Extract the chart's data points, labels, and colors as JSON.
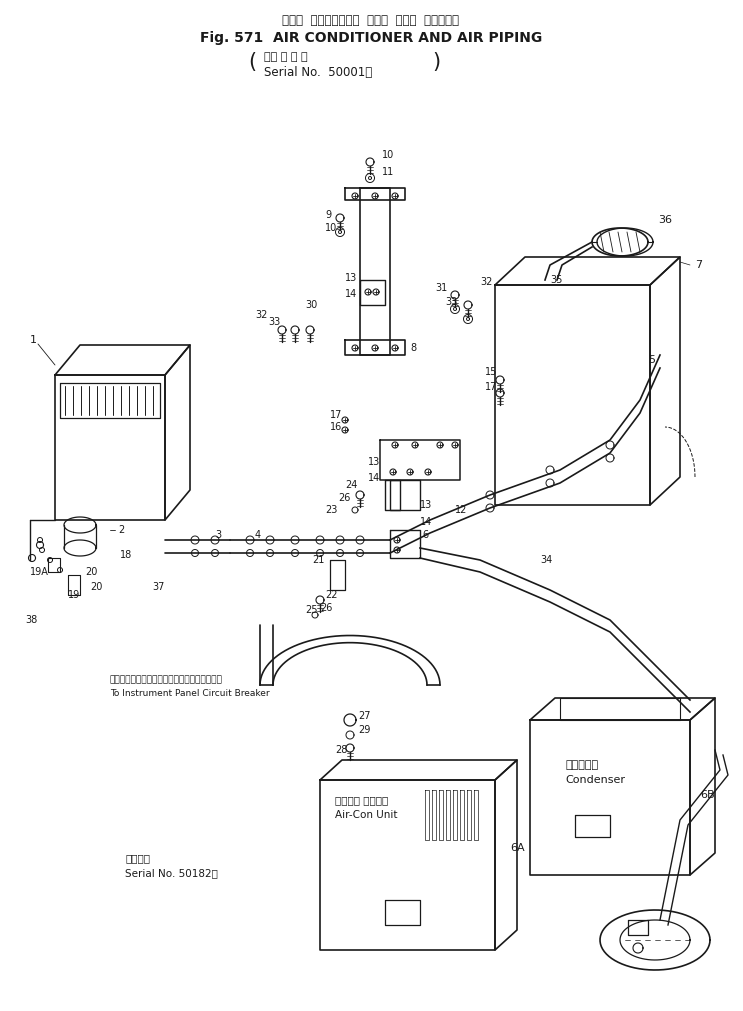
{
  "title_jp": "エアー  コンディショナ  および  エアー  パイピング",
  "title_en": "Fig. 571  AIR CONDITIONER AND AIR PIPING",
  "sub_jp": "（適 用 号 機",
  "sub_en": "Serial No.  50001～",
  "note1_jp": "インスツルメントパネルサーキットブレーカへ",
  "note1_en": "To Instrument Panel Circuit Breaker",
  "condenser_jp": "コンデンサ",
  "condenser_en": "Condenser",
  "aircon_jp": "エアコン ユニット",
  "aircon_en": "Air-Con Unit",
  "serial2_jp": "適用号機",
  "serial2_en": "Serial No. 50182～",
  "bg": "#ffffff",
  "lc": "#1a1a1a"
}
